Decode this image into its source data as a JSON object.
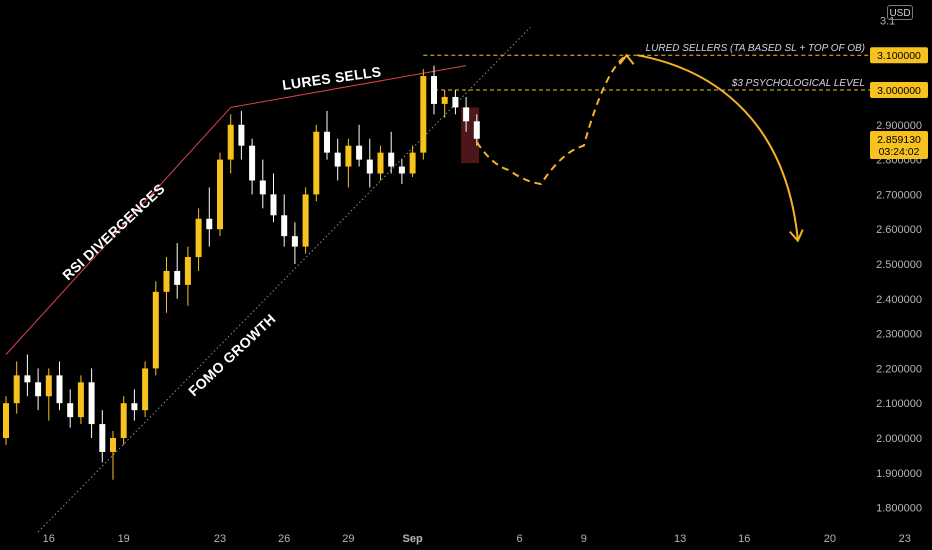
{
  "chart_data": {
    "type": "candlestick",
    "quote_currency": "USD",
    "y_axis": {
      "ticks": [
        "1.800000",
        "1.900000",
        "2.000000",
        "2.100000",
        "2.200000",
        "2.300000",
        "2.400000",
        "2.500000",
        "2.600000",
        "2.700000",
        "2.800000",
        "2.900000",
        "3.000000",
        "3.100000"
      ],
      "tick_values": [
        1.8,
        1.9,
        2.0,
        2.1,
        2.2,
        2.3,
        2.4,
        2.5,
        2.6,
        2.7,
        2.8,
        2.9,
        3.0,
        3.1
      ],
      "ylim": [
        1.74,
        3.23
      ],
      "top_partial_label": "3.1"
    },
    "x_axis": {
      "ticks": [
        "16",
        "19",
        "23",
        "26",
        "29",
        "Sep",
        "6",
        "9",
        "13",
        "16",
        "20",
        "23"
      ],
      "tick_index": [
        4,
        11,
        20,
        26,
        32,
        38,
        48,
        54,
        63,
        69,
        77,
        84
      ]
    },
    "ohlc_columns": [
      "open",
      "high",
      "low",
      "close"
    ],
    "candles": [
      [
        2.0,
        2.12,
        1.98,
        2.1
      ],
      [
        2.1,
        2.22,
        2.07,
        2.18
      ],
      [
        2.18,
        2.24,
        2.12,
        2.16
      ],
      [
        2.16,
        2.2,
        2.08,
        2.12
      ],
      [
        2.12,
        2.2,
        2.05,
        2.18
      ],
      [
        2.18,
        2.22,
        2.08,
        2.1
      ],
      [
        2.1,
        2.14,
        2.03,
        2.06
      ],
      [
        2.06,
        2.18,
        2.04,
        2.16
      ],
      [
        2.16,
        2.2,
        2.0,
        2.04
      ],
      [
        2.04,
        2.08,
        1.93,
        1.96
      ],
      [
        1.96,
        2.02,
        1.88,
        2.0
      ],
      [
        2.0,
        2.12,
        1.98,
        2.1
      ],
      [
        2.1,
        2.14,
        2.05,
        2.08
      ],
      [
        2.08,
        2.22,
        2.06,
        2.2
      ],
      [
        2.2,
        2.45,
        2.18,
        2.42
      ],
      [
        2.42,
        2.52,
        2.36,
        2.48
      ],
      [
        2.48,
        2.56,
        2.4,
        2.44
      ],
      [
        2.44,
        2.55,
        2.38,
        2.52
      ],
      [
        2.52,
        2.66,
        2.48,
        2.63
      ],
      [
        2.63,
        2.72,
        2.55,
        2.6
      ],
      [
        2.6,
        2.82,
        2.58,
        2.8
      ],
      [
        2.8,
        2.93,
        2.76,
        2.9
      ],
      [
        2.9,
        2.94,
        2.8,
        2.84
      ],
      [
        2.84,
        2.86,
        2.7,
        2.74
      ],
      [
        2.74,
        2.8,
        2.66,
        2.7
      ],
      [
        2.7,
        2.76,
        2.62,
        2.64
      ],
      [
        2.64,
        2.7,
        2.55,
        2.58
      ],
      [
        2.58,
        2.62,
        2.5,
        2.55
      ],
      [
        2.55,
        2.72,
        2.53,
        2.7
      ],
      [
        2.7,
        2.9,
        2.68,
        2.88
      ],
      [
        2.88,
        2.94,
        2.8,
        2.82
      ],
      [
        2.82,
        2.86,
        2.74,
        2.78
      ],
      [
        2.78,
        2.86,
        2.72,
        2.84
      ],
      [
        2.84,
        2.9,
        2.78,
        2.8
      ],
      [
        2.8,
        2.86,
        2.72,
        2.76
      ],
      [
        2.76,
        2.84,
        2.74,
        2.82
      ],
      [
        2.82,
        2.88,
        2.76,
        2.78
      ],
      [
        2.78,
        2.8,
        2.73,
        2.76
      ],
      [
        2.76,
        2.84,
        2.75,
        2.82
      ],
      [
        2.82,
        3.06,
        2.8,
        3.04
      ],
      [
        3.04,
        3.07,
        2.93,
        2.96
      ],
      [
        2.96,
        3.0,
        2.92,
        2.98
      ],
      [
        2.98,
        3.0,
        2.93,
        2.95
      ],
      [
        2.95,
        2.98,
        2.88,
        2.91
      ],
      [
        2.91,
        2.93,
        2.84,
        2.86
      ]
    ],
    "levels": [
      {
        "label": "LURED SELLERS (TA BASED SL + TOP OF OB)",
        "value": 3.1,
        "tag": "3.100000"
      },
      {
        "label": "$3 PSYCHOLOGICAL LEVEL",
        "value": 3.0,
        "tag": "3.000000"
      }
    ],
    "current_price": {
      "price": "2.859130",
      "countdown": "03:24:02",
      "value": 2.85913
    },
    "annotations": {
      "rsi": "RSI DIVERGENCES",
      "lures": "LURES SELLS",
      "fomo": "FOMO GROWTH"
    },
    "trendlines": [
      {
        "name": "rsi-divergence-line",
        "from": [
          0,
          2.24
        ],
        "to": [
          21,
          2.95
        ]
      },
      {
        "name": "lures-line",
        "from": [
          21,
          2.95
        ],
        "to": [
          43,
          3.07
        ]
      },
      {
        "name": "fomo-support-line",
        "from": [
          3,
          1.73
        ],
        "to": [
          49,
          3.18
        ]
      }
    ],
    "projection": {
      "dashed_path": [
        [
          44,
          2.85
        ],
        [
          47,
          2.77
        ],
        [
          50,
          2.73
        ],
        [
          54,
          2.84
        ],
        [
          58,
          3.1
        ]
      ],
      "solid_arc": [
        [
          59,
          3.1
        ],
        [
          66,
          3.06
        ],
        [
          71,
          2.86
        ],
        [
          74,
          2.57
        ]
      ]
    },
    "colors": {
      "background": "#000000",
      "up": "#f7c21d",
      "down": "#ffffff",
      "level_line": "#f7c21d",
      "tag_bg": "#f7c21d",
      "tag_text": "#000000",
      "trend_red": "#e0424a",
      "projection": "#f5b324",
      "axis_text": "#b2b5be",
      "current_box": "#5a1a1c"
    }
  }
}
